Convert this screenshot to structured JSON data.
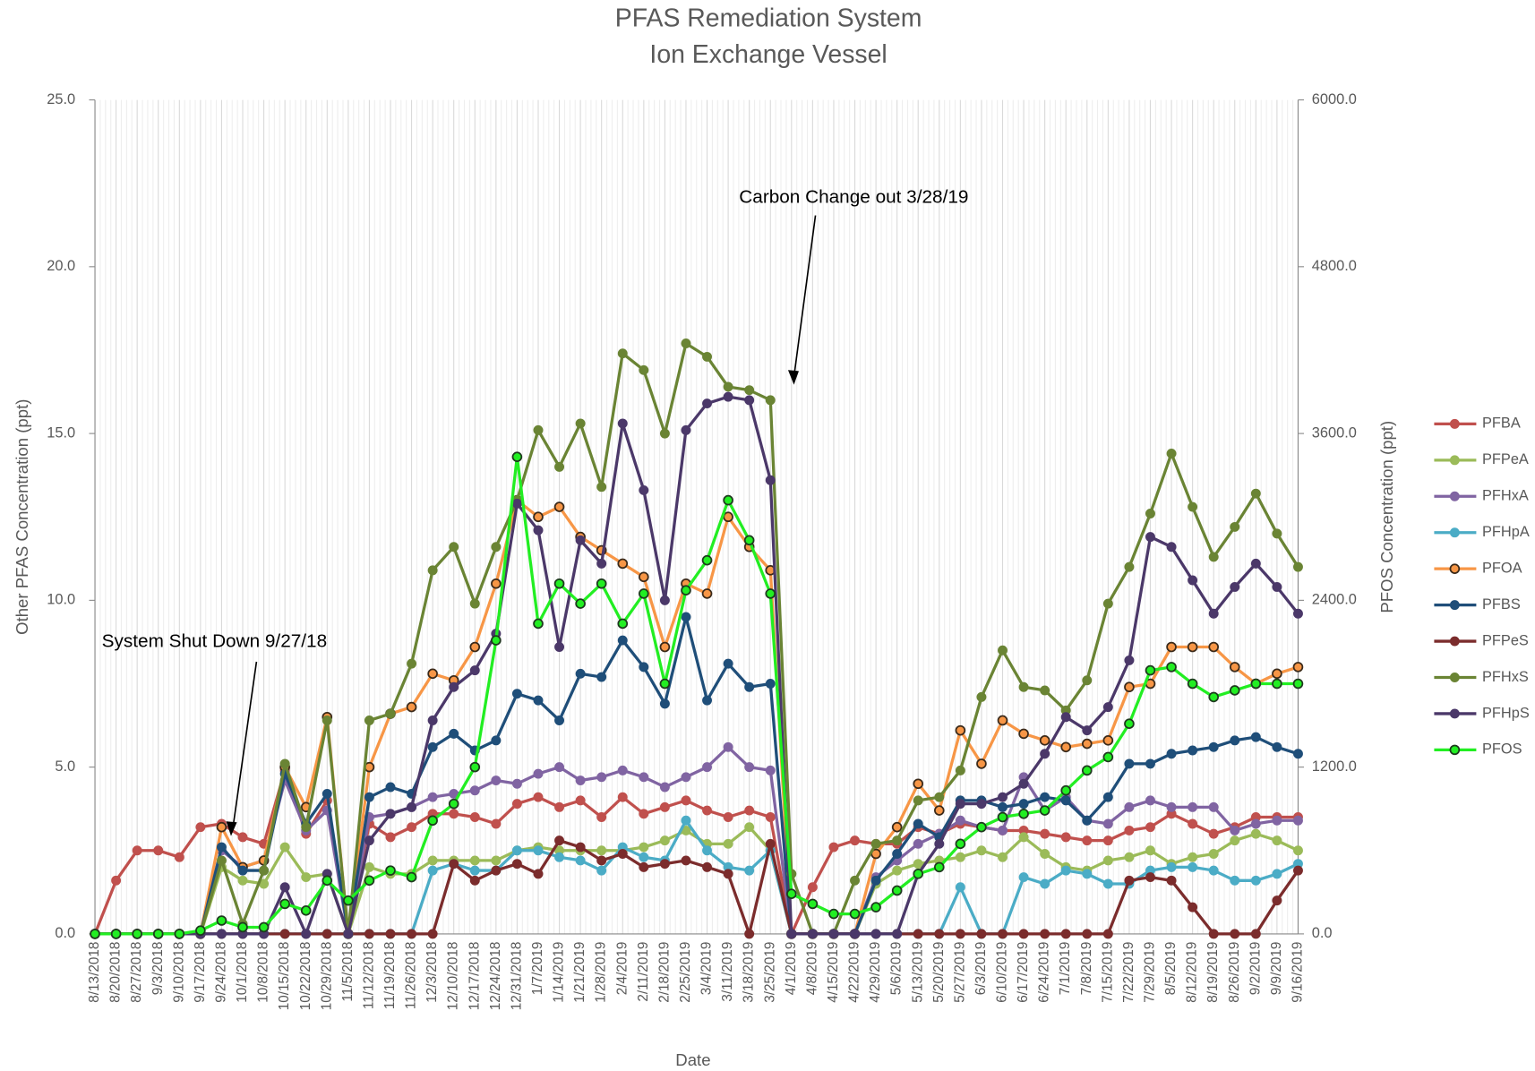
{
  "chart_data": {
    "type": "line",
    "title": "PFAS Remediation System",
    "subtitle": "Ion Exchange Vessel",
    "x_label": "Date",
    "y_label": "Other PFAS Concentration (ppt)",
    "y2_label": "PFOS Concentration (ppt)",
    "categories": [
      "8/13/2018",
      "8/20/2018",
      "8/27/2018",
      "9/3/2018",
      "9/10/2018",
      "9/17/2018",
      "9/24/2018",
      "10/1/2018",
      "10/8/2018",
      "10/15/2018",
      "10/22/2018",
      "10/29/2018",
      "11/5/2018",
      "11/12/2018",
      "11/19/2018",
      "11/26/2018",
      "12/3/2018",
      "12/10/2018",
      "12/17/2018",
      "12/24/2018",
      "12/31/2018",
      "1/7/2019",
      "1/14/2019",
      "1/21/2019",
      "1/28/2019",
      "2/4/2019",
      "2/11/2019",
      "2/18/2019",
      "2/25/2019",
      "3/4/2019",
      "3/11/2019",
      "3/18/2019",
      "3/25/2019",
      "4/1/2019",
      "4/8/2019",
      "4/15/2019",
      "4/22/2019",
      "4/29/2019",
      "5/6/2019",
      "5/13/2019",
      "5/20/2019",
      "5/27/2019",
      "6/3/2019",
      "6/10/2019",
      "6/17/2019",
      "6/24/2019",
      "7/1/2019",
      "7/8/2019",
      "7/15/2019",
      "7/22/2019",
      "7/29/2019",
      "8/5/2019",
      "8/12/2019",
      "8/19/2019",
      "8/26/2019",
      "9/2/2019",
      "9/9/2019",
      "9/16/2019"
    ],
    "ylim": [
      0,
      25
    ],
    "yticks": [
      {
        "value": 0,
        "label": "0.0"
      },
      {
        "value": 5,
        "label": "5.0"
      },
      {
        "value": 10,
        "label": "10.0"
      },
      {
        "value": 15,
        "label": "15.0"
      },
      {
        "value": 20,
        "label": "20.0"
      },
      {
        "value": 25,
        "label": "25.0"
      }
    ],
    "y2lim": [
      0,
      6000
    ],
    "y2ticks": [
      {
        "value": 0,
        "label": "0.0"
      },
      {
        "value": 1200,
        "label": "1200.0"
      },
      {
        "value": 2400,
        "label": "2400.0"
      },
      {
        "value": 3600,
        "label": "3600.0"
      },
      {
        "value": 4800,
        "label": "4800.0"
      },
      {
        "value": 6000,
        "label": "6000.0"
      }
    ],
    "xgrid": true,
    "legend": "right",
    "annotations": [
      {
        "text": "Carbon Change out 3/28/19"
      },
      {
        "text": "System Shut Down 9/27/18"
      }
    ],
    "series": [
      {
        "name": "PFBA",
        "color": "#c0504d",
        "values": [
          0,
          1.6,
          2.5,
          2.5,
          2.3,
          3.2,
          3.3,
          2.9,
          2.7,
          4.9,
          3.0,
          4.0,
          0,
          3.3,
          2.9,
          3.2,
          3.6,
          3.6,
          3.5,
          3.3,
          3.9,
          4.1,
          3.8,
          4.0,
          3.5,
          4.1,
          3.6,
          3.8,
          4.0,
          3.7,
          3.5,
          3.7,
          3.5,
          0,
          1.4,
          2.6,
          2.8,
          2.7,
          2.7,
          3.2,
          3.0,
          3.3,
          3.2,
          3.1,
          3.1,
          3.0,
          2.9,
          2.8,
          2.8,
          3.1,
          3.2,
          3.6,
          3.3,
          3.0,
          3.2,
          3.5,
          3.5,
          3.5
        ]
      },
      {
        "name": "PFPeA",
        "color": "#9bbb59",
        "values": [
          0,
          0,
          0,
          0,
          0,
          0,
          2.0,
          1.6,
          1.5,
          2.6,
          1.7,
          1.8,
          0,
          2.0,
          1.8,
          1.8,
          2.2,
          2.2,
          2.2,
          2.2,
          2.5,
          2.6,
          2.5,
          2.5,
          2.5,
          2.5,
          2.6,
          2.8,
          3.1,
          2.7,
          2.7,
          3.2,
          2.5,
          0,
          0,
          0,
          0,
          1.5,
          1.9,
          2.1,
          2.2,
          2.3,
          2.5,
          2.3,
          2.9,
          2.4,
          2.0,
          1.9,
          2.2,
          2.3,
          2.5,
          2.1,
          2.3,
          2.4,
          2.8,
          3.0,
          2.8,
          2.5
        ]
      },
      {
        "name": "PFHxA",
        "color": "#8064a2",
        "values": [
          0,
          0,
          0,
          0,
          0,
          0,
          2.5,
          2.0,
          2.2,
          4.6,
          3.1,
          3.7,
          0,
          3.5,
          3.6,
          3.8,
          4.1,
          4.2,
          4.3,
          4.6,
          4.5,
          4.8,
          5.0,
          4.6,
          4.7,
          4.9,
          4.7,
          4.4,
          4.7,
          5.0,
          5.6,
          5.0,
          4.9,
          0,
          0,
          0,
          0,
          1.7,
          2.2,
          2.7,
          3.0,
          3.4,
          3.2,
          3.1,
          4.7,
          3.7,
          4.1,
          3.4,
          3.3,
          3.8,
          4.0,
          3.8,
          3.8,
          3.8,
          3.1,
          3.3,
          3.4,
          3.4
        ]
      },
      {
        "name": "PFHpA",
        "color": "#4bacc6",
        "values": [
          0,
          0,
          0,
          0,
          0,
          0,
          0,
          0,
          0,
          0,
          0,
          0,
          0,
          0,
          0,
          0,
          1.9,
          2.1,
          1.9,
          1.9,
          2.5,
          2.5,
          2.3,
          2.2,
          1.9,
          2.6,
          2.3,
          2.2,
          3.4,
          2.5,
          2.0,
          1.9,
          2.5,
          0,
          0,
          0,
          0,
          0,
          0,
          0,
          0,
          1.4,
          0,
          0,
          1.7,
          1.5,
          1.9,
          1.8,
          1.5,
          1.5,
          1.9,
          2.0,
          2.0,
          1.9,
          1.6,
          1.6,
          1.8,
          2.1
        ]
      },
      {
        "name": "PFOA",
        "color": "#f79646",
        "marker_edge": "#3b2a1a",
        "values": [
          0,
          0,
          0,
          0,
          0,
          0,
          3.2,
          2.0,
          2.2,
          5.0,
          3.8,
          6.5,
          0,
          5.0,
          6.6,
          6.8,
          7.8,
          7.6,
          8.6,
          10.5,
          13.0,
          12.5,
          12.8,
          11.9,
          11.5,
          11.1,
          10.7,
          8.6,
          10.5,
          10.2,
          12.5,
          11.6,
          10.9,
          0,
          0,
          0,
          0,
          2.4,
          3.2,
          4.5,
          3.7,
          6.1,
          5.1,
          6.4,
          6.0,
          5.8,
          5.6,
          5.7,
          5.8,
          7.4,
          7.5,
          8.6,
          8.6,
          8.6,
          8.0,
          7.5,
          7.8,
          8.0
        ]
      },
      {
        "name": "PFBS",
        "color": "#1f4e79",
        "values": [
          0,
          0,
          0,
          0,
          0,
          0,
          2.6,
          1.9,
          1.9,
          4.8,
          3.3,
          4.2,
          0,
          4.1,
          4.4,
          4.2,
          5.6,
          6.0,
          5.5,
          5.8,
          7.2,
          7.0,
          6.4,
          7.8,
          7.7,
          8.8,
          8.0,
          6.9,
          9.5,
          7.0,
          8.1,
          7.4,
          7.5,
          0,
          0,
          0,
          0,
          1.6,
          2.4,
          3.3,
          2.9,
          4.0,
          4.0,
          3.8,
          3.9,
          4.1,
          4.0,
          3.4,
          4.1,
          5.1,
          5.1,
          5.4,
          5.5,
          5.6,
          5.8,
          5.9,
          5.6,
          5.4
        ]
      },
      {
        "name": "PFPeS",
        "color": "#7b2c2c",
        "values": [
          0,
          0,
          0,
          0,
          0,
          0,
          0,
          0,
          0,
          0,
          0,
          0,
          0,
          0,
          0,
          0,
          0,
          2.1,
          1.6,
          1.9,
          2.1,
          1.8,
          2.8,
          2.6,
          2.2,
          2.4,
          2.0,
          2.1,
          2.2,
          2.0,
          1.8,
          0,
          2.7,
          0,
          0,
          0,
          0,
          0,
          0,
          0,
          0,
          0,
          0,
          0,
          0,
          0,
          0,
          0,
          0,
          1.6,
          1.7,
          1.6,
          0.8,
          0,
          0,
          0,
          1.0,
          1.9
        ]
      },
      {
        "name": "PFHxS",
        "color": "#6a8434",
        "values": [
          0,
          0,
          0,
          0,
          0,
          0,
          2.2,
          0.3,
          1.9,
          5.1,
          3.2,
          6.4,
          0,
          6.4,
          6.6,
          8.1,
          10.9,
          11.6,
          9.9,
          11.6,
          13.0,
          15.1,
          14.0,
          15.3,
          13.4,
          17.4,
          16.9,
          15.0,
          17.7,
          17.3,
          16.4,
          16.3,
          16.0,
          1.8,
          0,
          0,
          1.6,
          2.7,
          2.8,
          4.0,
          4.1,
          4.9,
          7.1,
          8.5,
          7.4,
          7.3,
          6.7,
          7.6,
          9.9,
          11.0,
          12.6,
          14.4,
          12.8,
          11.3,
          12.2,
          13.2,
          12.0,
          11.0
        ]
      },
      {
        "name": "PFHpS",
        "color": "#4b3869",
        "values": [
          0,
          0,
          0,
          0,
          0,
          0,
          0,
          0,
          0,
          1.4,
          0,
          1.8,
          0,
          2.8,
          3.6,
          3.8,
          6.4,
          7.4,
          7.9,
          9.0,
          12.9,
          12.1,
          8.6,
          11.8,
          11.1,
          15.3,
          13.3,
          10.0,
          15.1,
          15.9,
          16.1,
          16.0,
          13.6,
          0,
          0,
          0,
          0,
          0,
          0,
          1.8,
          2.7,
          3.9,
          3.9,
          4.1,
          4.5,
          5.4,
          6.5,
          6.1,
          6.8,
          8.2,
          11.9,
          11.6,
          10.6,
          9.6,
          10.4,
          11.1,
          10.4,
          9.6
        ]
      },
      {
        "name": "PFOS",
        "color": "#22ee22",
        "marker_edge": "#1e3a1e",
        "axis": "y2",
        "values": [
          0,
          0,
          0,
          0,
          0,
          24,
          96,
          48,
          48,
          216,
          168,
          384,
          240,
          384,
          456,
          408,
          816,
          936,
          1200,
          2112,
          3432,
          2232,
          2520,
          2376,
          2520,
          2232,
          2448,
          1800,
          2472,
          2688,
          3120,
          2832,
          2448,
          288,
          216,
          144,
          144,
          192,
          312,
          432,
          480,
          648,
          768,
          840,
          864,
          888,
          1032,
          1176,
          1272,
          1512,
          1896,
          1920,
          1800,
          1704,
          1752,
          1800,
          1800,
          1800
        ]
      }
    ]
  }
}
